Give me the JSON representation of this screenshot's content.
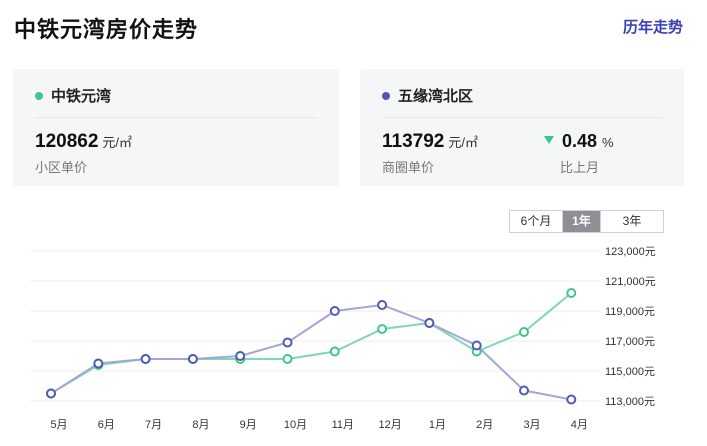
{
  "header": {
    "title": "中铁元湾房价走势",
    "history_link": "历年走势"
  },
  "cards": [
    {
      "name": "中铁元湾",
      "dot_color": "#3ec78a",
      "price": "120862",
      "unit": "元/㎡",
      "sub_label": "小区单价"
    },
    {
      "name": "五缘湾北区",
      "dot_color": "#5059b5",
      "price": "113792",
      "unit": "元/㎡",
      "sub_label": "商圈单价",
      "change": {
        "direction": "down",
        "value": "0.48",
        "unit": "%",
        "label": "比上月",
        "color": "#3ec78a"
      }
    }
  ],
  "range_tabs": [
    {
      "label": "6个月",
      "active": false
    },
    {
      "label": "1年",
      "active": true
    },
    {
      "label": "3年",
      "active": false
    }
  ],
  "chart_data": {
    "type": "line",
    "categories": [
      "5月",
      "6月",
      "7月",
      "8月",
      "9月",
      "10月",
      "11月",
      "12月",
      "1月",
      "2月",
      "3月",
      "4月"
    ],
    "y_ticks": [
      "123,000元",
      "121,000元",
      "119,000元",
      "117,000元",
      "115,000元",
      "113,000元"
    ],
    "ylim": [
      113000,
      123000
    ],
    "grid": true,
    "series": [
      {
        "name": "中铁元湾",
        "color": "#3ec78a",
        "line_color": "#7dd9b0",
        "values": [
          113500,
          115400,
          115800,
          115800,
          115800,
          115800,
          116300,
          117800,
          118200,
          116300,
          117600,
          120200
        ]
      },
      {
        "name": "五缘湾北区",
        "color": "#5059b5",
        "line_color": "#a3a6d6",
        "values": [
          113500,
          115500,
          115800,
          115800,
          116000,
          116900,
          119000,
          119400,
          118200,
          116700,
          113700,
          113100
        ]
      }
    ]
  }
}
